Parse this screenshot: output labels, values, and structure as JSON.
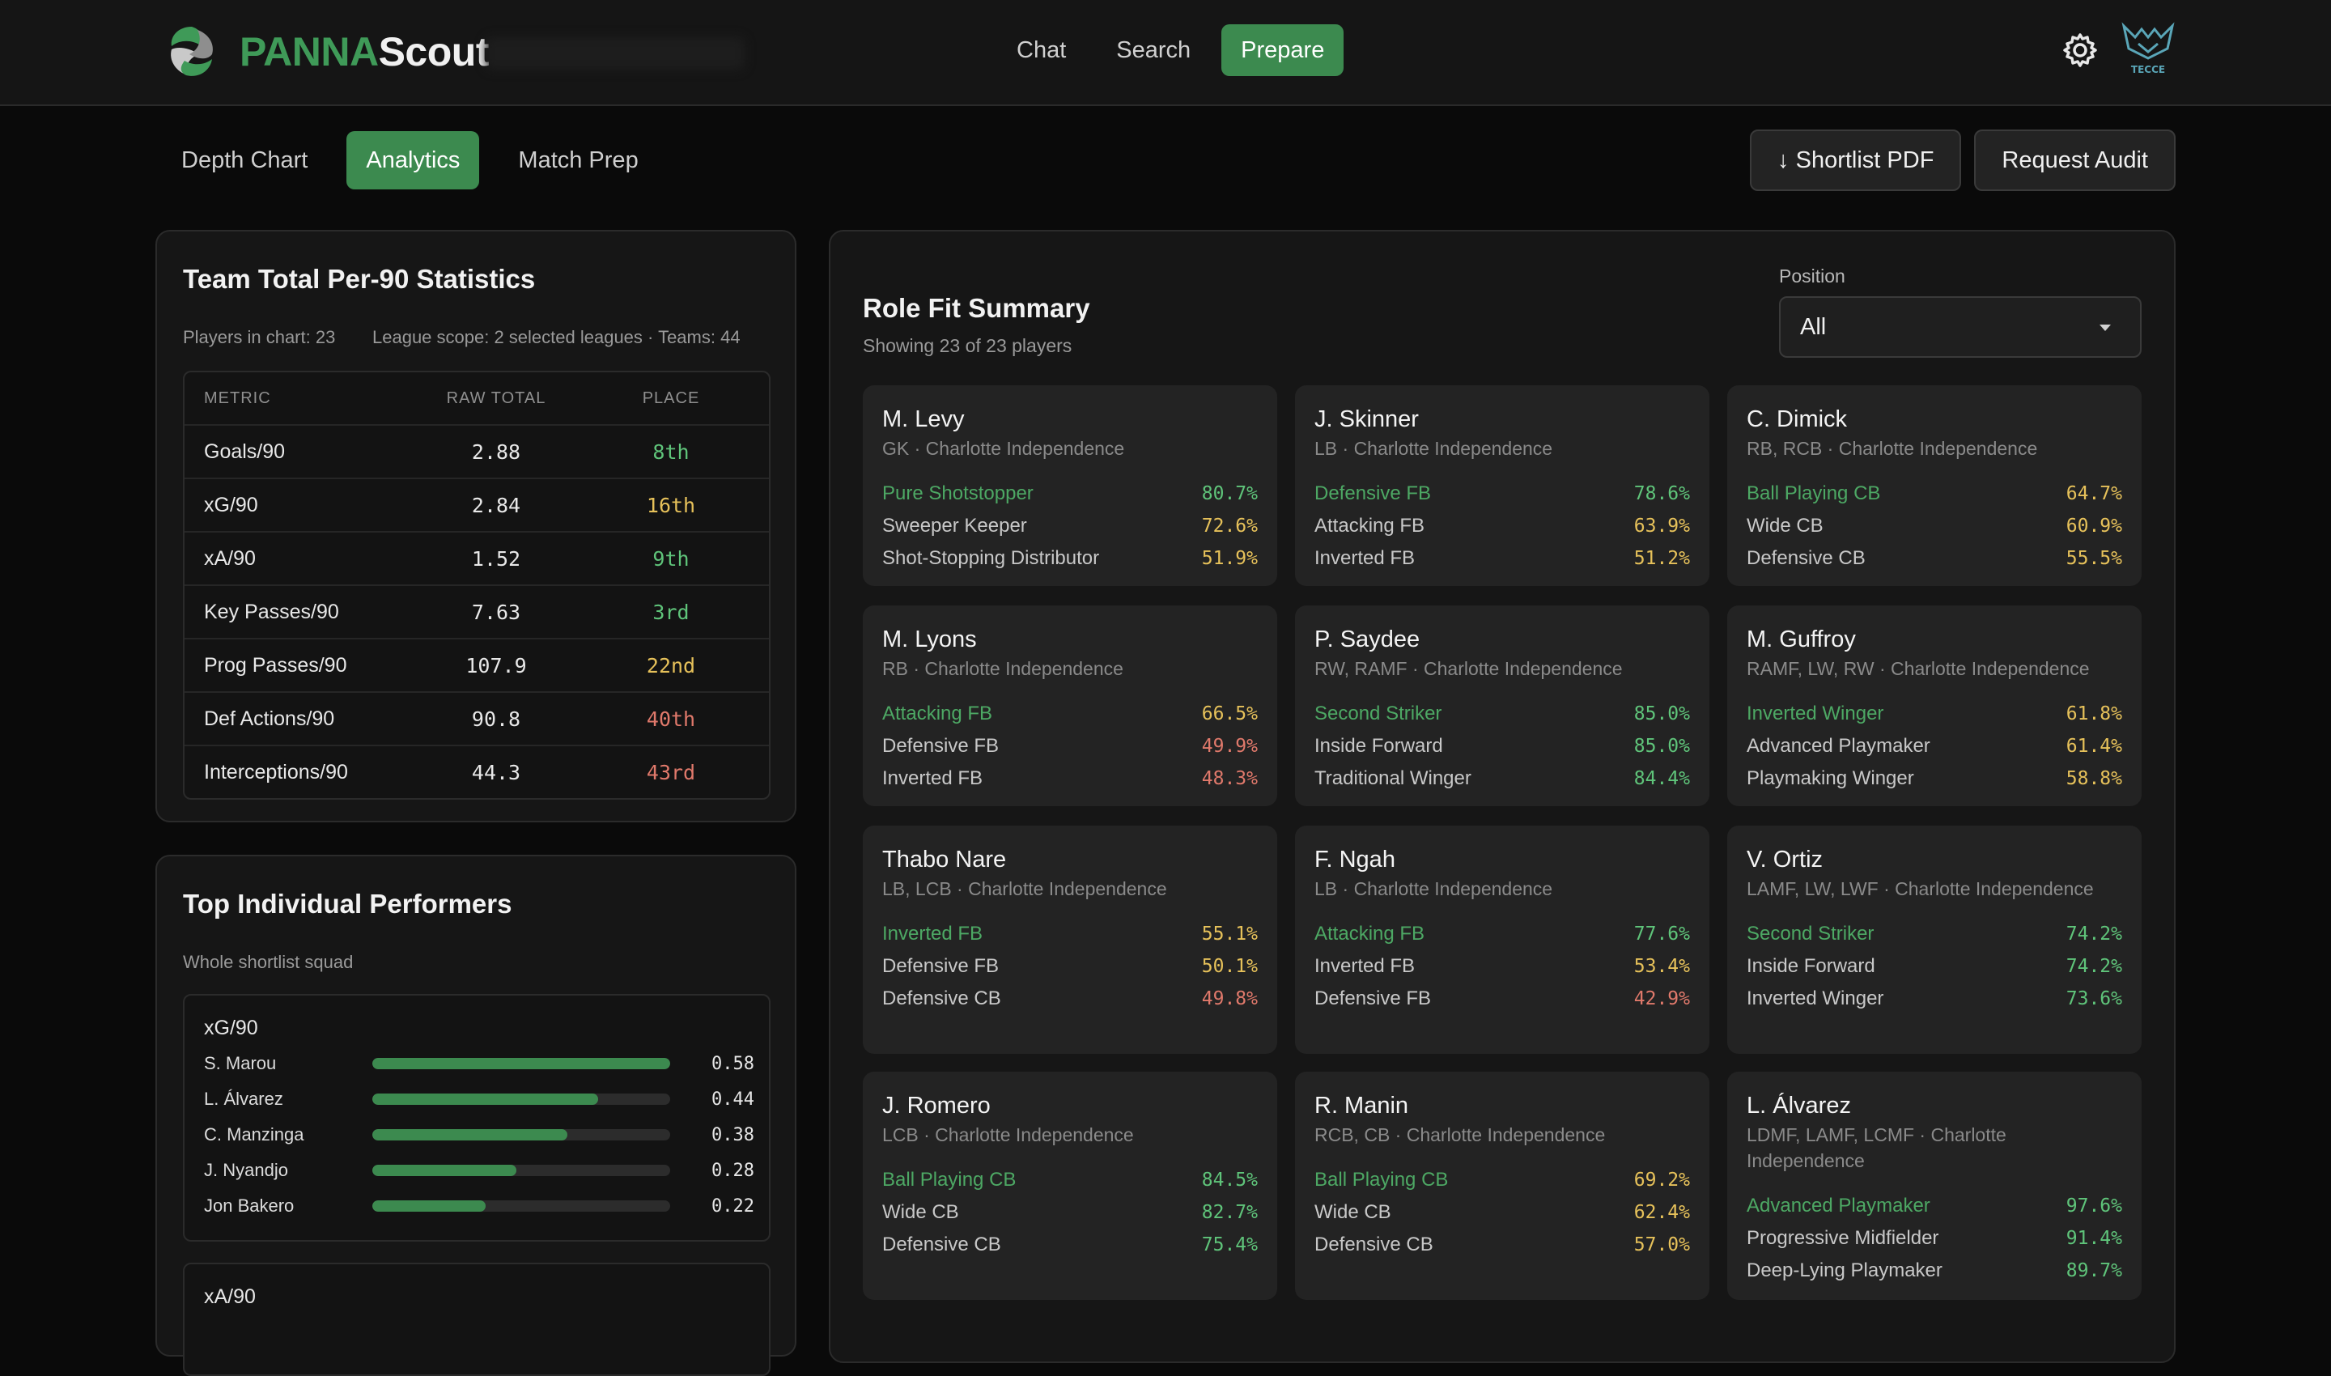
{
  "brand": {
    "part1": "PANNA",
    "part2": "Scout"
  },
  "nav": [
    {
      "label": "Chat",
      "active": false
    },
    {
      "label": "Search",
      "active": false
    },
    {
      "label": "Prepare",
      "active": true
    }
  ],
  "club_badge_text": "TECCE",
  "tabs": [
    {
      "label": "Depth Chart",
      "active": false
    },
    {
      "label": "Analytics",
      "active": true
    },
    {
      "label": "Match Prep",
      "active": false
    }
  ],
  "actions": {
    "shortlist_pdf": "↓ Shortlist PDF",
    "request_audit": "Request Audit"
  },
  "colors": {
    "green": "#5fc47a",
    "yellow": "#e6c15a",
    "red": "#e0796b",
    "accent": "#3c8a4f"
  },
  "team_stats": {
    "title": "Team Total Per-90 Statistics",
    "players_in_chart": "Players in chart: 23",
    "league_scope": "League scope: 2 selected leagues · Teams: 44",
    "headers": {
      "metric": "METRIC",
      "raw_total": "RAW TOTAL",
      "place": "PLACE"
    },
    "rows": [
      {
        "metric": "Goals/90",
        "raw": "2.88",
        "place": "8th",
        "tone": "green"
      },
      {
        "metric": "xG/90",
        "raw": "2.84",
        "place": "16th",
        "tone": "yellow"
      },
      {
        "metric": "xA/90",
        "raw": "1.52",
        "place": "9th",
        "tone": "green"
      },
      {
        "metric": "Key Passes/90",
        "raw": "7.63",
        "place": "3rd",
        "tone": "green"
      },
      {
        "metric": "Prog Passes/90",
        "raw": "107.9",
        "place": "22nd",
        "tone": "yellow"
      },
      {
        "metric": "Def Actions/90",
        "raw": "90.8",
        "place": "40th",
        "tone": "red"
      },
      {
        "metric": "Interceptions/90",
        "raw": "44.3",
        "place": "43rd",
        "tone": "red"
      }
    ]
  },
  "top_performers": {
    "title": "Top Individual Performers",
    "subtitle": "Whole shortlist squad",
    "groups": [
      {
        "label": "xG/90",
        "max": 0.58,
        "items": [
          {
            "name": "S. Marou",
            "value": 0.58,
            "display": "0.58"
          },
          {
            "name": "L. Álvarez",
            "value": 0.44,
            "display": "0.44"
          },
          {
            "name": "C. Manzinga",
            "value": 0.38,
            "display": "0.38"
          },
          {
            "name": "J. Nyandjo",
            "value": 0.28,
            "display": "0.28"
          },
          {
            "name": "Jon Bakero",
            "value": 0.22,
            "display": "0.22"
          }
        ]
      },
      {
        "label": "xA/90",
        "items": []
      }
    ]
  },
  "role_fit": {
    "title": "Role Fit Summary",
    "subtitle": "Showing 23 of 23 players",
    "position_label": "Position",
    "position_value": "All",
    "cards": [
      {
        "name": "M. Levy",
        "meta": "GK · Charlotte Independence",
        "roles": [
          {
            "role": "Pure Shotstopper",
            "pct": "80.7%",
            "tone": "green"
          },
          {
            "role": "Sweeper Keeper",
            "pct": "72.6%",
            "tone": "yellow"
          },
          {
            "role": "Shot-Stopping Distributor",
            "pct": "51.9%",
            "tone": "yellow"
          }
        ]
      },
      {
        "name": "J. Skinner",
        "meta": "LB · Charlotte Independence",
        "roles": [
          {
            "role": "Defensive FB",
            "pct": "78.6%",
            "tone": "green"
          },
          {
            "role": "Attacking FB",
            "pct": "63.9%",
            "tone": "yellow"
          },
          {
            "role": "Inverted FB",
            "pct": "51.2%",
            "tone": "yellow"
          }
        ]
      },
      {
        "name": "C. Dimick",
        "meta": "RB, RCB · Charlotte Independence",
        "roles": [
          {
            "role": "Ball Playing CB",
            "pct": "64.7%",
            "tone": "yellow"
          },
          {
            "role": "Wide CB",
            "pct": "60.9%",
            "tone": "yellow"
          },
          {
            "role": "Defensive CB",
            "pct": "55.5%",
            "tone": "yellow"
          }
        ]
      },
      {
        "name": "M. Lyons",
        "meta": "RB · Charlotte Independence",
        "roles": [
          {
            "role": "Attacking FB",
            "pct": "66.5%",
            "tone": "yellow"
          },
          {
            "role": "Defensive FB",
            "pct": "49.9%",
            "tone": "red"
          },
          {
            "role": "Inverted FB",
            "pct": "48.3%",
            "tone": "red"
          }
        ]
      },
      {
        "name": "P. Saydee",
        "meta": "RW, RAMF · Charlotte Independence",
        "roles": [
          {
            "role": "Second Striker",
            "pct": "85.0%",
            "tone": "green"
          },
          {
            "role": "Inside Forward",
            "pct": "85.0%",
            "tone": "green"
          },
          {
            "role": "Traditional Winger",
            "pct": "84.4%",
            "tone": "green"
          }
        ]
      },
      {
        "name": "M. Guffroy",
        "meta": "RAMF, LW, RW · Charlotte Independence",
        "roles": [
          {
            "role": "Inverted Winger",
            "pct": "61.8%",
            "tone": "yellow"
          },
          {
            "role": "Advanced Playmaker",
            "pct": "61.4%",
            "tone": "yellow"
          },
          {
            "role": "Playmaking Winger",
            "pct": "58.8%",
            "tone": "yellow"
          }
        ]
      },
      {
        "name": "Thabo Nare",
        "meta": "LB, LCB · Charlotte Independence",
        "roles": [
          {
            "role": "Inverted FB",
            "pct": "55.1%",
            "tone": "yellow"
          },
          {
            "role": "Defensive FB",
            "pct": "50.1%",
            "tone": "yellow"
          },
          {
            "role": "Defensive CB",
            "pct": "49.8%",
            "tone": "red"
          }
        ]
      },
      {
        "name": "F. Ngah",
        "meta": "LB · Charlotte Independence",
        "roles": [
          {
            "role": "Attacking FB",
            "pct": "77.6%",
            "tone": "green"
          },
          {
            "role": "Inverted FB",
            "pct": "53.4%",
            "tone": "yellow"
          },
          {
            "role": "Defensive FB",
            "pct": "42.9%",
            "tone": "red"
          }
        ]
      },
      {
        "name": "V. Ortiz",
        "meta": "LAMF, LW, LWF · Charlotte Independence",
        "roles": [
          {
            "role": "Second Striker",
            "pct": "74.2%",
            "tone": "green"
          },
          {
            "role": "Inside Forward",
            "pct": "74.2%",
            "tone": "green"
          },
          {
            "role": "Inverted Winger",
            "pct": "73.6%",
            "tone": "green"
          }
        ]
      },
      {
        "name": "J. Romero",
        "meta": "LCB · Charlotte Independence",
        "roles": [
          {
            "role": "Ball Playing CB",
            "pct": "84.5%",
            "tone": "green"
          },
          {
            "role": "Wide CB",
            "pct": "82.7%",
            "tone": "green"
          },
          {
            "role": "Defensive CB",
            "pct": "75.4%",
            "tone": "green"
          }
        ]
      },
      {
        "name": "R. Manin",
        "meta": "RCB, CB · Charlotte Independence",
        "roles": [
          {
            "role": "Ball Playing CB",
            "pct": "69.2%",
            "tone": "yellow"
          },
          {
            "role": "Wide CB",
            "pct": "62.4%",
            "tone": "yellow"
          },
          {
            "role": "Defensive CB",
            "pct": "57.0%",
            "tone": "yellow"
          }
        ]
      },
      {
        "name": "L. Álvarez",
        "meta": "LDMF, LAMF, LCMF · Charlotte Independence",
        "roles": [
          {
            "role": "Advanced Playmaker",
            "pct": "97.6%",
            "tone": "green"
          },
          {
            "role": "Progressive Midfielder",
            "pct": "91.4%",
            "tone": "green"
          },
          {
            "role": "Deep-Lying Playmaker",
            "pct": "89.7%",
            "tone": "green"
          }
        ]
      }
    ]
  }
}
